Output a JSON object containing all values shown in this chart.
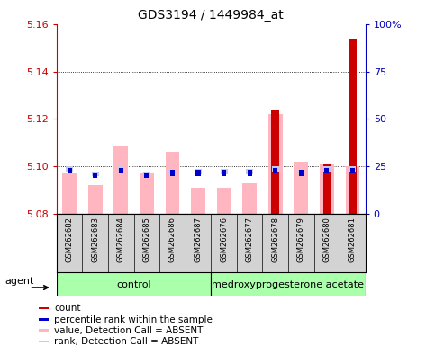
{
  "title": "GDS3194 / 1449984_at",
  "samples": [
    "GSM262682",
    "GSM262683",
    "GSM262684",
    "GSM262685",
    "GSM262686",
    "GSM262687",
    "GSM262676",
    "GSM262677",
    "GSM262678",
    "GSM262679",
    "GSM262680",
    "GSM262681"
  ],
  "control_count": 6,
  "treatment_label": "medroxyprogesterone acetate",
  "control_label": "control",
  "ylim_left": [
    5.08,
    5.16
  ],
  "ylim_right": [
    0,
    100
  ],
  "yticks_left": [
    5.08,
    5.1,
    5.12,
    5.14,
    5.16
  ],
  "yticks_right": [
    0,
    25,
    50,
    75,
    100
  ],
  "ytick_labels_right": [
    "0",
    "25",
    "50",
    "75",
    "100%"
  ],
  "pink_bars_top": [
    5.097,
    5.092,
    5.109,
    5.097,
    5.106,
    5.091,
    5.091,
    5.093,
    5.122,
    5.102,
    5.101,
    5.1
  ],
  "bar_base": 5.08,
  "blue_sq_y": [
    5.097,
    5.095,
    5.097,
    5.095,
    5.096,
    5.096,
    5.096,
    5.096,
    5.097,
    5.096,
    5.097,
    5.097
  ],
  "red_bars_top": [
    0,
    0,
    0,
    0,
    0,
    0,
    0,
    0,
    5.124,
    0,
    5.101,
    5.154
  ],
  "legend_items": [
    {
      "color": "#cc0000",
      "label": "count"
    },
    {
      "color": "#0000cc",
      "label": "percentile rank within the sample"
    },
    {
      "color": "#ffb6c1",
      "label": "value, Detection Call = ABSENT"
    },
    {
      "color": "#c8c8e8",
      "label": "rank, Detection Call = ABSENT"
    }
  ],
  "left_yaxis_color": "#cc0000",
  "right_yaxis_color": "#0000bb",
  "group_color": "#aaffaa",
  "sample_box_color": "#d3d3d3"
}
